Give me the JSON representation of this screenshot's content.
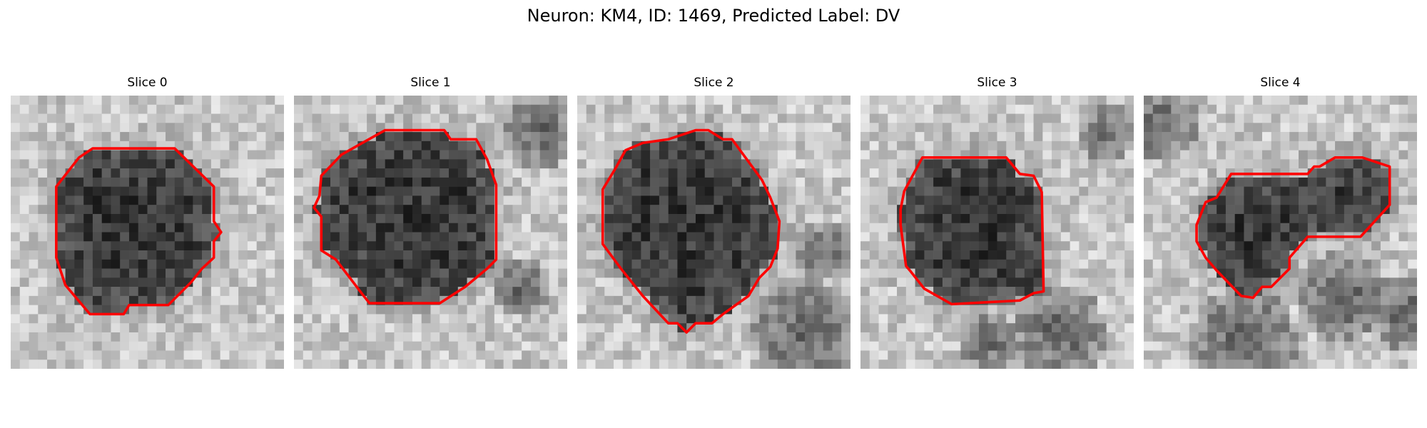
{
  "figure": {
    "title": "Neuron: KM4, ID: 1469, Predicted Label: DV"
  },
  "panels": [
    {
      "title": "Slice 0",
      "image": "grayscale microscopy patch with a dark round cell body in the center",
      "outline_color": "#ff0000"
    },
    {
      "title": "Slice 1",
      "image": "grayscale microscopy patch with a large dark round cell body",
      "outline_color": "#ff0000"
    },
    {
      "title": "Slice 2",
      "image": "grayscale microscopy patch with a dark cell body and a darker region at lower right",
      "outline_color": "#ff0000"
    },
    {
      "title": "Slice 3",
      "image": "grayscale microscopy patch with a dark cell body surrounded by lighter tissue",
      "outline_color": "#ff0000"
    },
    {
      "title": "Slice 4",
      "image": "grayscale microscopy patch with an irregular dark cell region",
      "outline_color": "#ff0000"
    }
  ]
}
